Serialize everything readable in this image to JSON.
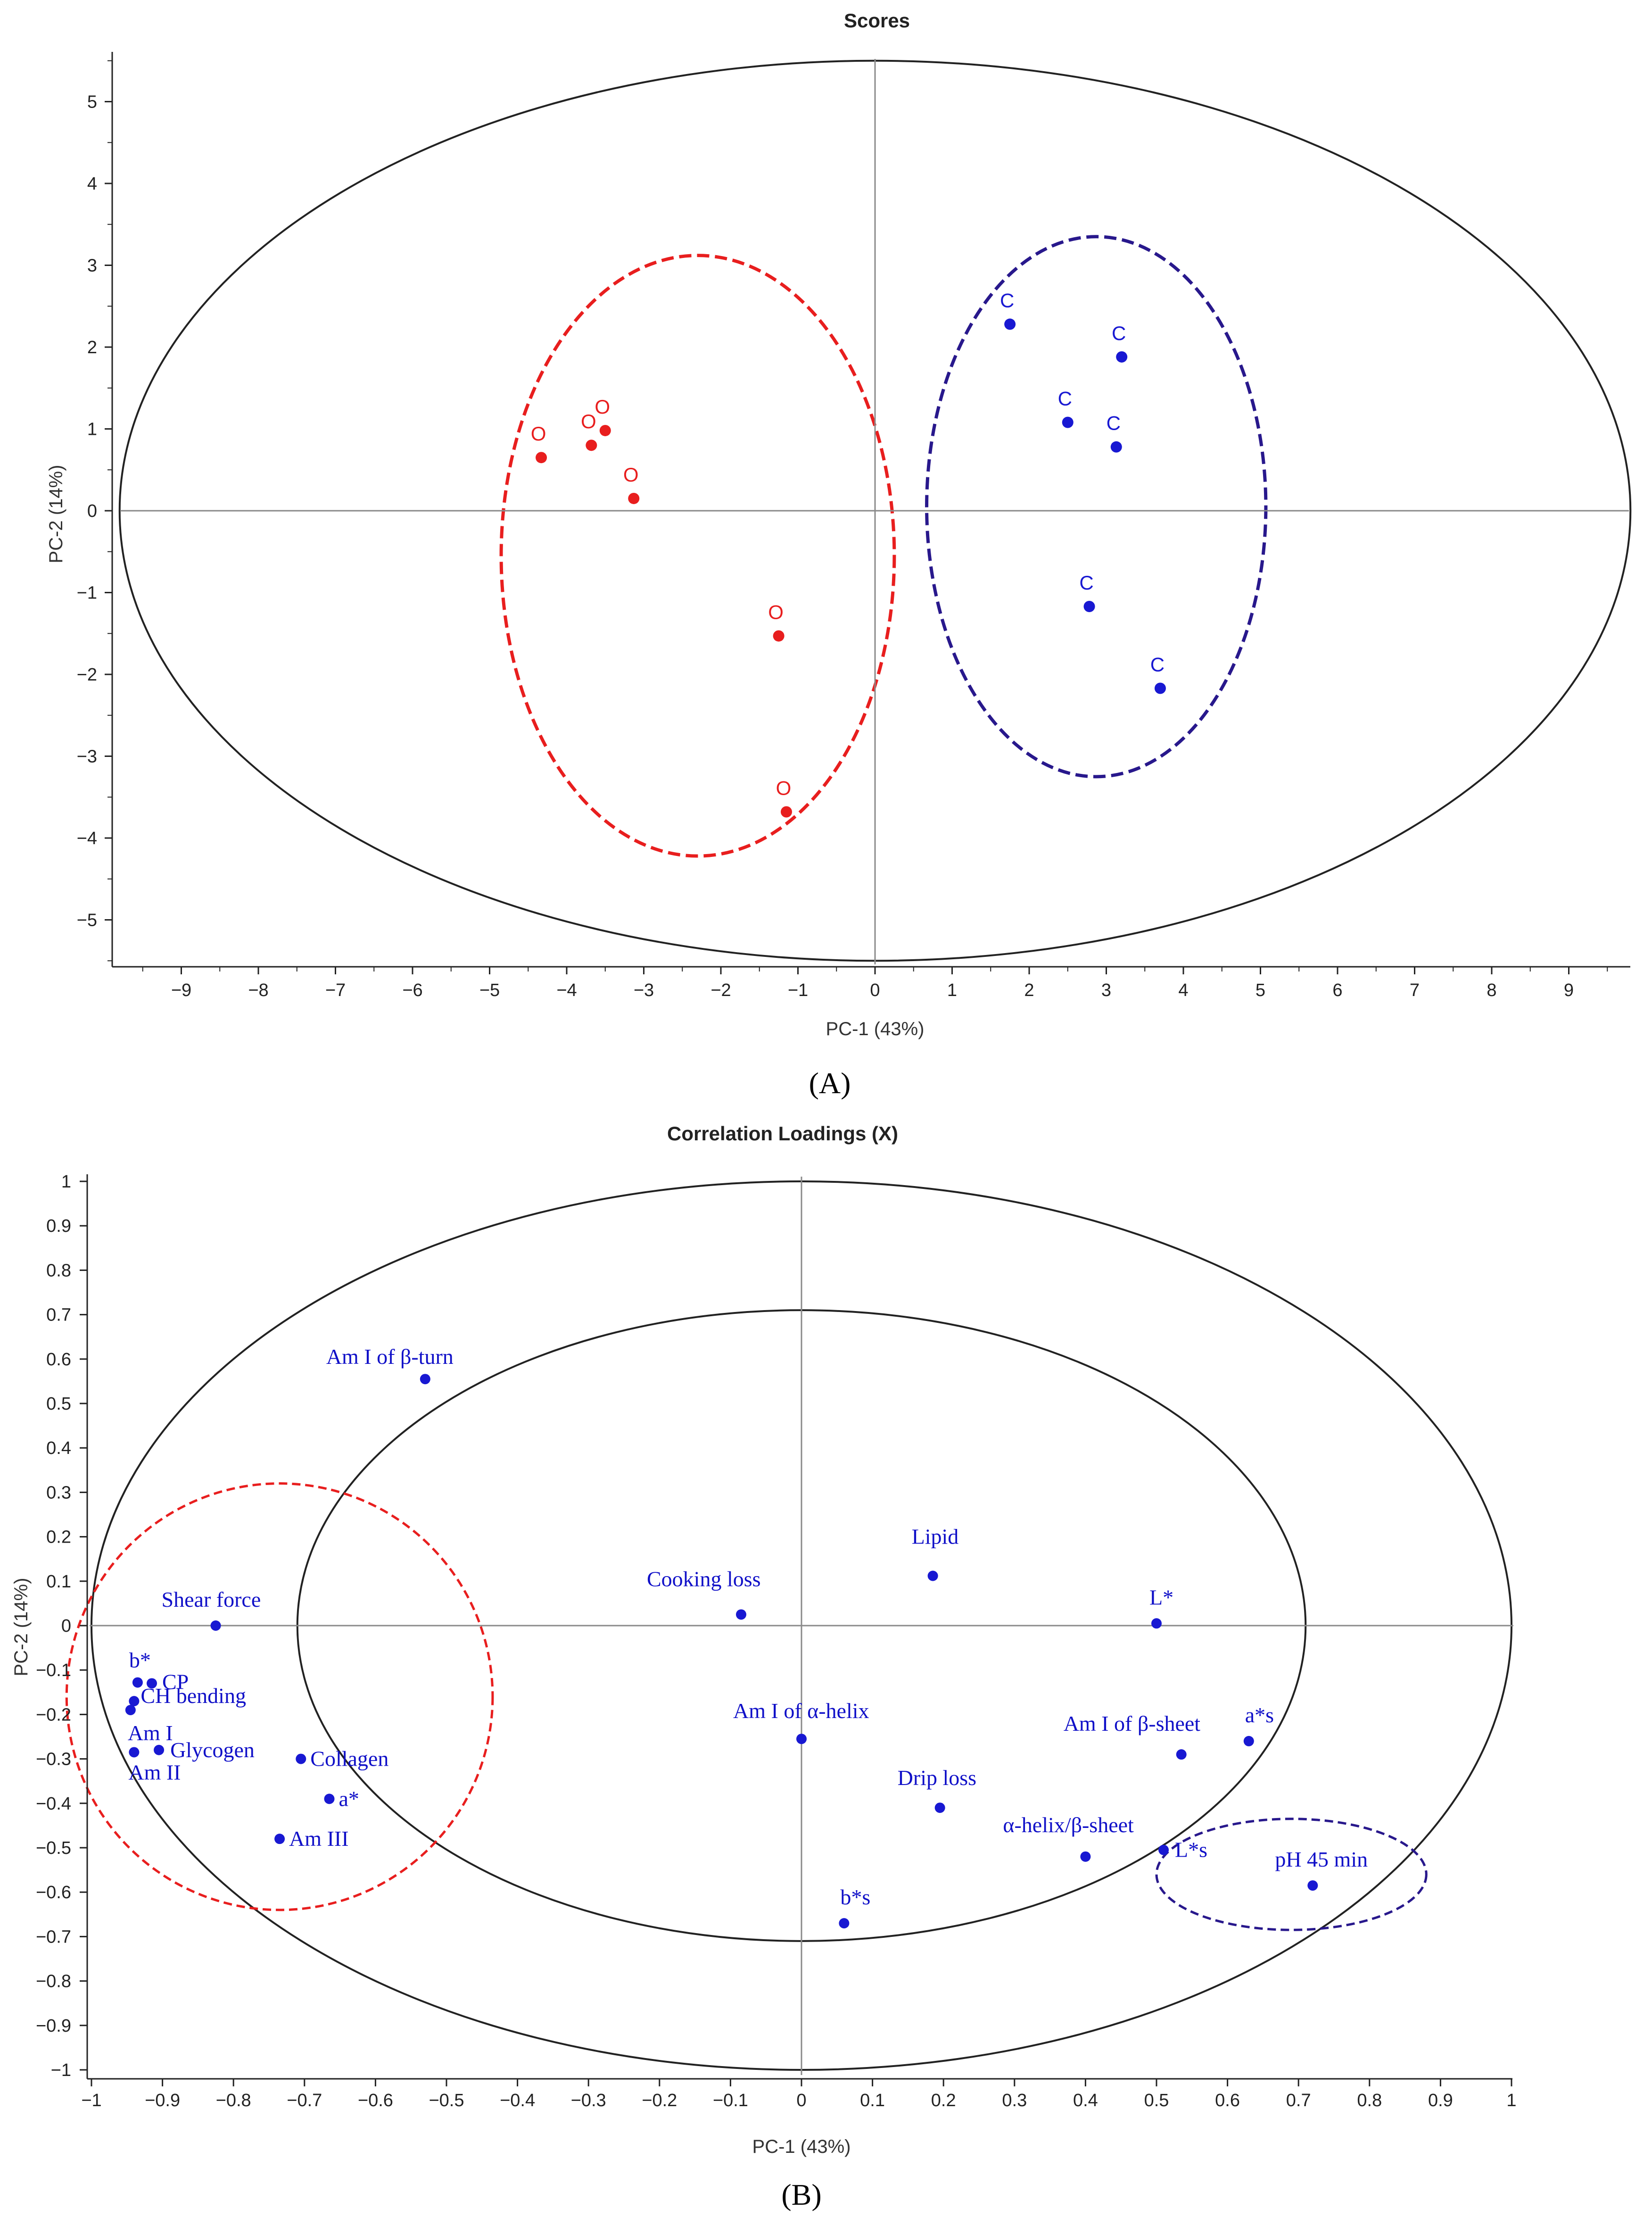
{
  "colors": {
    "red": "#e81e1e",
    "blue": "#1818d2",
    "navy": "#28188c",
    "axis": "#222222",
    "cross": "#8a8a8a"
  },
  "chart_data": [
    {
      "type": "scatter",
      "panel_label": "(A)",
      "title": "Scores",
      "xlabel": "PC-1 (43%)",
      "ylabel": "PC-2 (14%)",
      "xlim": [
        -9.8,
        9.9
      ],
      "ylim": [
        -5.6,
        5.55
      ],
      "xticks": [
        "−9",
        "−8",
        "−7",
        "−6",
        "−5",
        "−4",
        "−3",
        "−2",
        "−1",
        "0",
        "1",
        "2",
        "3",
        "4",
        "5",
        "6",
        "7",
        "8",
        "9"
      ],
      "yticks": [
        "5",
        "4",
        "3",
        "2",
        "1",
        "0",
        "−1",
        "−2",
        "−3",
        "−4",
        "−5"
      ],
      "series": [
        {
          "name": "red group",
          "marker_label": "O",
          "color": "red",
          "points": [
            {
              "x": -4.33,
              "y": 0.65
            },
            {
              "x": -3.68,
              "y": 0.8
            },
            {
              "x": -3.5,
              "y": 0.98
            },
            {
              "x": -3.13,
              "y": 0.15
            },
            {
              "x": -1.25,
              "y": -1.53
            },
            {
              "x": -1.15,
              "y": -3.68
            }
          ]
        },
        {
          "name": "blue group",
          "marker_label": "C",
          "color": "blue",
          "points": [
            {
              "x": 1.75,
              "y": 2.28
            },
            {
              "x": 3.2,
              "y": 1.88
            },
            {
              "x": 2.5,
              "y": 1.08
            },
            {
              "x": 3.13,
              "y": 0.78
            },
            {
              "x": 2.78,
              "y": -1.17
            },
            {
              "x": 3.7,
              "y": -2.17
            }
          ]
        }
      ],
      "ellipses": [
        {
          "name": "hotelling",
          "cx": 0,
          "cy": 0,
          "rx": 9.8,
          "ry": 5.5,
          "style": "solid"
        },
        {
          "name": "red-cluster",
          "cx": -2.3,
          "cy": -0.55,
          "rx": 2.55,
          "ry": 3.67,
          "style": "dashed",
          "color": "red"
        },
        {
          "name": "blue-cluster",
          "cx": 2.87,
          "cy": 0.05,
          "rx": 2.2,
          "ry": 3.3,
          "style": "dashed",
          "color": "navy"
        }
      ]
    },
    {
      "type": "scatter",
      "panel_label": "(B)",
      "title": "Correlation Loadings (X)",
      "xlabel": "PC-1 (43%)",
      "ylabel": "PC-2 (14%)",
      "xlim": [
        -1,
        1
      ],
      "ylim": [
        -1,
        1
      ],
      "xticks": [
        "−1",
        "−0.9",
        "−0.8",
        "−0.7",
        "−0.6",
        "−0.5",
        "−0.4",
        "−0.3",
        "−0.2",
        "−0.1",
        "0",
        "0.1",
        "0.2",
        "0.3",
        "0.4",
        "0.5",
        "0.6",
        "0.7",
        "0.8",
        "0.9",
        "1"
      ],
      "yticks": [
        "1",
        "0.9",
        "0.8",
        "0.7",
        "0.6",
        "0.5",
        "0.4",
        "0.3",
        "0.2",
        "0.1",
        "0",
        "−0.1",
        "−0.2",
        "−0.3",
        "−0.4",
        "−0.5",
        "−0.6",
        "−0.7",
        "−0.8",
        "−0.9",
        "−1"
      ],
      "variables": [
        {
          "name": "Am I of β-turn",
          "x": -0.53,
          "y": 0.555
        },
        {
          "name": "Lipid",
          "x": 0.185,
          "y": 0.112
        },
        {
          "name": "Cooking loss",
          "x": -0.085,
          "y": 0.025
        },
        {
          "name": "Shear force",
          "x": -0.825,
          "y": 0.0
        },
        {
          "name": "L*",
          "x": 0.5,
          "y": 0.005
        },
        {
          "name": "b*",
          "x": -0.935,
          "y": -0.128
        },
        {
          "name": "CP",
          "x": -0.915,
          "y": -0.13
        },
        {
          "name": "CH bending",
          "x": -0.94,
          "y": -0.17
        },
        {
          "name": "Am I",
          "x": -0.945,
          "y": -0.19
        },
        {
          "name": "Glycogen",
          "x": -0.905,
          "y": -0.28
        },
        {
          "name": "Am II",
          "x": -0.94,
          "y": -0.285
        },
        {
          "name": "Collagen",
          "x": -0.705,
          "y": -0.3
        },
        {
          "name": "a*",
          "x": -0.665,
          "y": -0.39
        },
        {
          "name": "Am III",
          "x": -0.735,
          "y": -0.48
        },
        {
          "name": "Am I of α-helix",
          "x": 0.0,
          "y": -0.255
        },
        {
          "name": "Drip loss",
          "x": 0.195,
          "y": -0.41
        },
        {
          "name": "Am I of β-sheet",
          "x": 0.535,
          "y": -0.29
        },
        {
          "name": "a*s",
          "x": 0.63,
          "y": -0.26
        },
        {
          "name": "α-helix/β-sheet",
          "x": 0.4,
          "y": -0.52
        },
        {
          "name": "L*s",
          "x": 0.51,
          "y": -0.505
        },
        {
          "name": "pH 45 min",
          "x": 0.72,
          "y": -0.585
        },
        {
          "name": "b*s",
          "x": 0.06,
          "y": -0.67
        }
      ],
      "ellipses": [
        {
          "name": "outer-100pct",
          "cx": 0,
          "cy": 0,
          "rx": 1.0,
          "ry": 1.0,
          "style": "solid"
        },
        {
          "name": "inner-50pct",
          "cx": 0.0,
          "cy": 0.0,
          "rx": 0.71,
          "ry": 0.71,
          "style": "solid"
        },
        {
          "name": "red-cluster",
          "cx": -0.735,
          "cy": -0.16,
          "rx": 0.3,
          "ry": 0.48,
          "style": "dashed",
          "color": "red"
        },
        {
          "name": "blue-cluster",
          "cx": 0.69,
          "cy": -0.56,
          "rx": 0.19,
          "ry": 0.125,
          "style": "dashed",
          "color": "navy"
        }
      ]
    }
  ]
}
